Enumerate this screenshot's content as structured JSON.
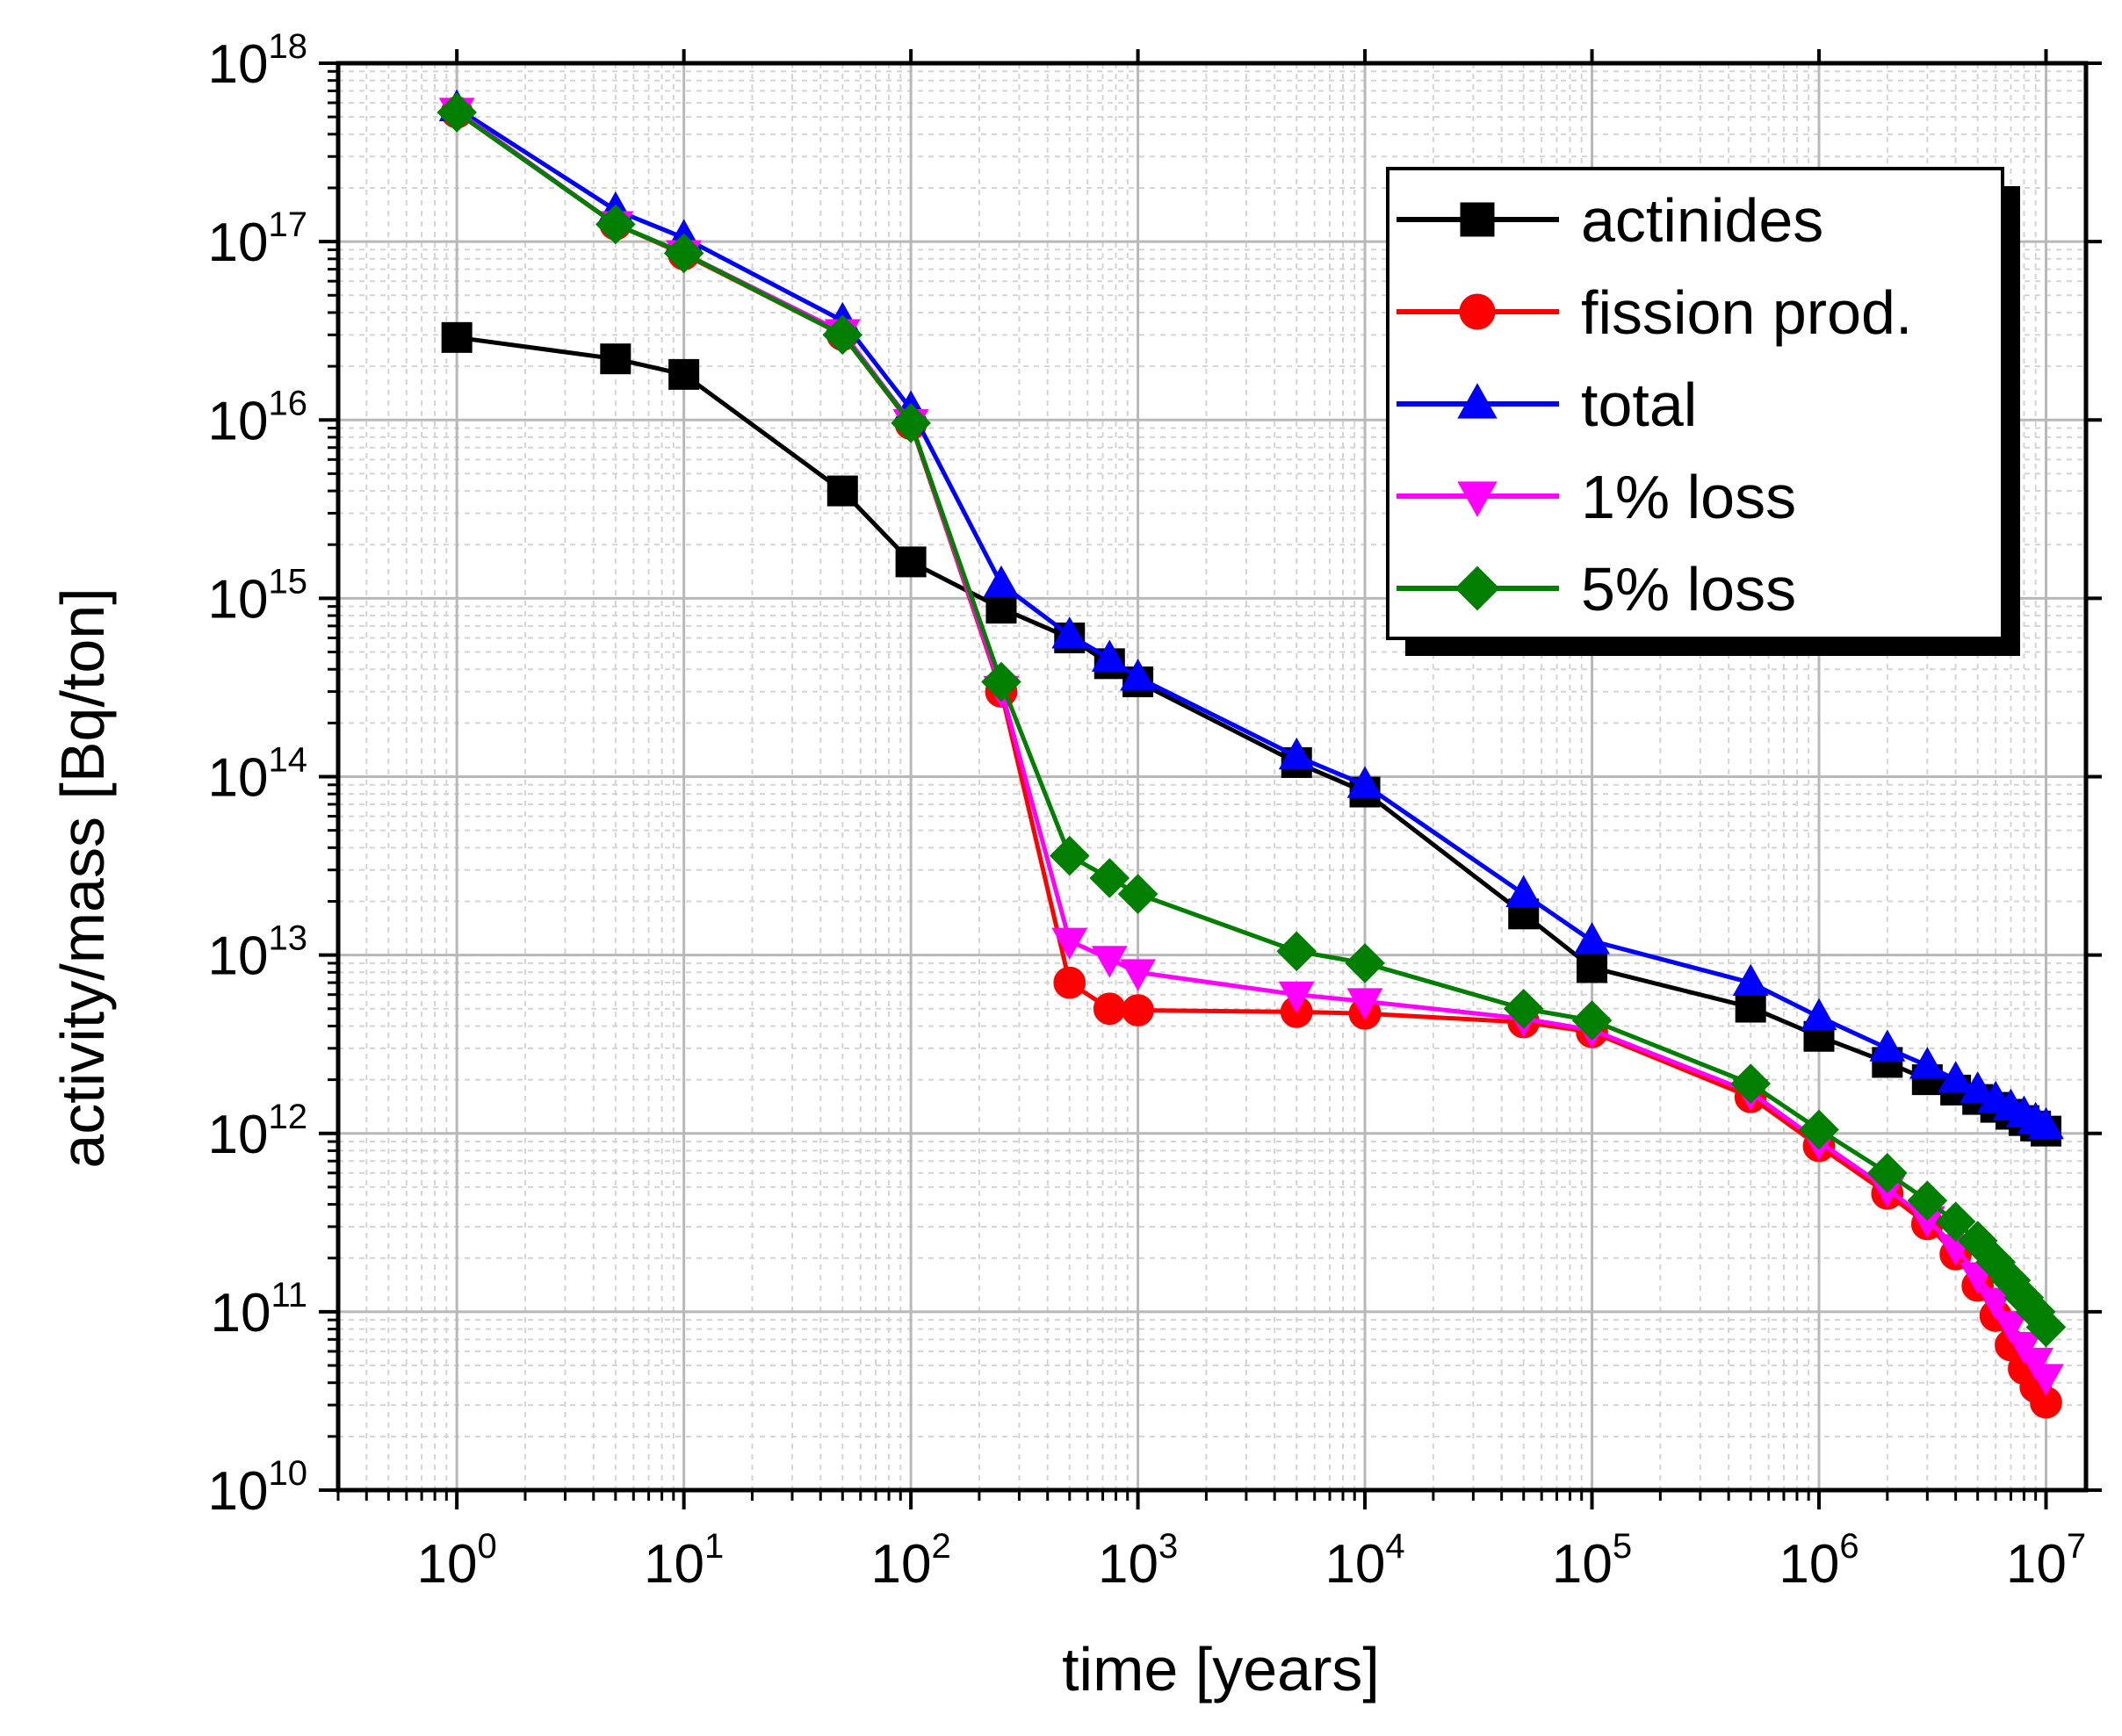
{
  "chart_data": {
    "type": "line",
    "title": "",
    "xlabel": "time [years]",
    "ylabel": "activity/mass [Bq/ton]",
    "xscale": "log",
    "yscale": "log",
    "xlim": [
      0.3,
      15000000
    ],
    "ylim": [
      10000000000.0,
      1e+18
    ],
    "grid": true,
    "legend_position": "top-right",
    "x_ticks": [
      {
        "base": "10",
        "exp": "0"
      },
      {
        "base": "10",
        "exp": "1"
      },
      {
        "base": "10",
        "exp": "2"
      },
      {
        "base": "10",
        "exp": "3"
      },
      {
        "base": "10",
        "exp": "4"
      },
      {
        "base": "10",
        "exp": "5"
      },
      {
        "base": "10",
        "exp": "6"
      },
      {
        "base": "10",
        "exp": "7"
      }
    ],
    "y_ticks": [
      {
        "base": "10",
        "exp": "10"
      },
      {
        "base": "10",
        "exp": "11"
      },
      {
        "base": "10",
        "exp": "12"
      },
      {
        "base": "10",
        "exp": "13"
      },
      {
        "base": "10",
        "exp": "14"
      },
      {
        "base": "10",
        "exp": "15"
      },
      {
        "base": "10",
        "exp": "16"
      },
      {
        "base": "10",
        "exp": "17"
      },
      {
        "base": "10",
        "exp": "18"
      }
    ],
    "series": [
      {
        "name": "actinides",
        "color": "#000000",
        "marker": "square",
        "x": [
          1,
          5,
          10,
          50,
          100,
          250,
          500,
          750,
          1000,
          5000,
          10000,
          50000,
          100000,
          500000,
          1000000,
          2000000,
          3000000,
          4000000,
          5000000,
          6000000,
          7000000,
          8000000,
          9000000,
          10000000
        ],
        "y": [
          2.9e+16,
          2.2e+16,
          1.8e+16,
          4000000000000000.0,
          1600000000000000.0,
          880000000000000.0,
          600000000000000.0,
          430000000000000.0,
          340000000000000.0,
          120000000000000.0,
          82000000000000.0,
          17000000000000.0,
          8500000000000.0,
          5100000000000.0,
          3500000000000.0,
          2500000000000.0,
          2000000000000.0,
          1750000000000.0,
          1550000000000.0,
          1400000000000.0,
          1280000000000.0,
          1180000000000.0,
          1100000000000.0,
          1030000000000.0
        ]
      },
      {
        "name": "fission prod.",
        "color": "#ff0000",
        "marker": "circle",
        "x": [
          1,
          5,
          10,
          50,
          100,
          250,
          500,
          750,
          1000,
          5000,
          10000,
          50000,
          100000,
          500000,
          1000000,
          2000000,
          3000000,
          4000000,
          5000000,
          6000000,
          7000000,
          8000000,
          9000000,
          10000000
        ],
        "y": [
          5.3e+17,
          1.25e+17,
          8.5e+16,
          3e+16,
          9500000000000000.0,
          300000000000000.0,
          7000000000000.0,
          5000000000000.0,
          4900000000000.0,
          4800000000000.0,
          4700000000000.0,
          4200000000000.0,
          3700000000000.0,
          1600000000000.0,
          850000000000.0,
          460000000000.0,
          310000000000.0,
          210000000000.0,
          140000000000.0,
          95000000000.0,
          65000000000.0,
          48000000000.0,
          38000000000.0,
          31000000000.0
        ]
      },
      {
        "name": "total",
        "color": "#0000ff",
        "marker": "triangle-up",
        "x": [
          1,
          5,
          10,
          50,
          100,
          250,
          500,
          750,
          1000,
          5000,
          10000,
          50000,
          100000,
          500000,
          1000000,
          2000000,
          3000000,
          4000000,
          5000000,
          6000000,
          7000000,
          8000000,
          9000000,
          10000000
        ],
        "y": [
          5.6e+17,
          1.5e+17,
          1.05e+17,
          3.6e+16,
          1.15e+16,
          1200000000000000.0,
          620000000000000.0,
          460000000000000.0,
          360000000000000.0,
          130000000000000.0,
          90000000000000.0,
          22000000000000.0,
          12000000000000.0,
          7000000000000.0,
          4500000000000.0,
          3000000000000.0,
          2400000000000.0,
          2000000000000.0,
          1750000000000.0,
          1550000000000.0,
          1400000000000.0,
          1280000000000.0,
          1180000000000.0,
          1100000000000.0
        ]
      },
      {
        "name": "1% loss",
        "color": "#ff00ff",
        "marker": "triangle-down",
        "x": [
          1,
          5,
          10,
          50,
          100,
          250,
          500,
          750,
          1000,
          5000,
          10000,
          50000,
          100000,
          500000,
          1000000,
          2000000,
          3000000,
          4000000,
          5000000,
          6000000,
          7000000,
          8000000,
          9000000,
          10000000
        ],
        "y": [
          5.4e+17,
          1.25e+17,
          8.6e+16,
          3.1e+16,
          9700000000000000.0,
          310000000000000.0,
          12000000000000.0,
          9500000000000.0,
          8000000000000.0,
          6000000000000.0,
          5500000000000.0,
          4400000000000.0,
          3800000000000.0,
          1700000000000.0,
          900000000000.0,
          490000000000.0,
          330000000000.0,
          230000000000.0,
          160000000000.0,
          115000000000.0,
          85000000000.0,
          65000000000.0,
          53000000000.0,
          43000000000.0
        ]
      },
      {
        "name": "5% loss",
        "color": "#007f00",
        "marker": "diamond",
        "x": [
          1,
          5,
          10,
          50,
          100,
          250,
          500,
          750,
          1000,
          5000,
          10000,
          50000,
          100000,
          500000,
          1000000,
          2000000,
          3000000,
          4000000,
          5000000,
          6000000,
          7000000,
          8000000,
          9000000,
          10000000
        ],
        "y": [
          5.3e+17,
          1.25e+17,
          8.6e+16,
          3e+16,
          9600000000000000.0,
          340000000000000.0,
          36000000000000.0,
          27000000000000.0,
          22000000000000.0,
          10500000000000.0,
          9000000000000.0,
          5000000000000.0,
          4300000000000.0,
          1900000000000.0,
          1050000000000.0,
          600000000000.0,
          420000000000.0,
          320000000000.0,
          250000000000.0,
          190000000000.0,
          150000000000.0,
          120000000000.0,
          100000000000.0,
          82000000000.0
        ]
      }
    ]
  }
}
